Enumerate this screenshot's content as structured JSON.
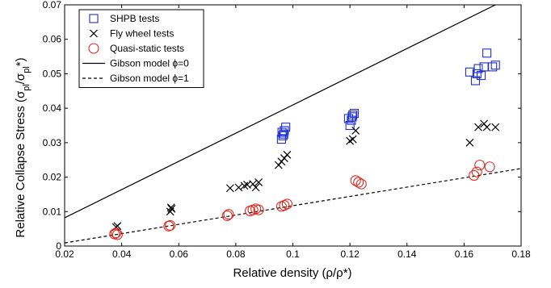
{
  "chart_data": {
    "type": "scatter",
    "xlabel": "Relative density (ρ/ρ*)",
    "ylabel": "Relative Collapse Stress (σ",
    "ylabel_sub1": "pl",
    "ylabel_mid": "/σ",
    "ylabel_sub2": "pl",
    "ylabel_end": "*)",
    "xlim": [
      0.02,
      0.18
    ],
    "ylim": [
      0,
      0.07
    ],
    "xticks": [
      "0.02",
      "0.04",
      "0.06",
      "0.08",
      "0.1",
      "0.12",
      "0.14",
      "0.16",
      "0.18"
    ],
    "yticks": [
      "0",
      "0.01",
      "0.02",
      "0.03",
      "0.04",
      "0.05",
      "0.06",
      "0.07"
    ],
    "legend_position": "top-left",
    "series": [
      {
        "name": "SHPB tests",
        "marker": "square",
        "color": "#1f2fd0",
        "x": [
          0.096,
          0.0965,
          0.097,
          0.0975,
          0.0962,
          0.0968,
          0.12,
          0.1205,
          0.121,
          0.1215,
          0.1195,
          0.1208,
          0.162,
          0.164,
          0.165,
          0.166,
          0.168,
          0.17,
          0.171,
          0.1645,
          0.167
        ],
        "y": [
          0.031,
          0.032,
          0.0335,
          0.0345,
          0.033,
          0.0325,
          0.035,
          0.0365,
          0.038,
          0.0385,
          0.037,
          0.0375,
          0.0505,
          0.048,
          0.0515,
          0.0495,
          0.056,
          0.052,
          0.0525,
          0.05,
          0.052
        ]
      },
      {
        "name": "Fly wheel tests",
        "marker": "cross",
        "color": "#000000",
        "x": [
          0.038,
          0.0385,
          0.057,
          0.0575,
          0.0573,
          0.078,
          0.081,
          0.083,
          0.084,
          0.086,
          0.087,
          0.088,
          0.095,
          0.096,
          0.097,
          0.098,
          0.12,
          0.121,
          0.122,
          0.162,
          0.165,
          0.167,
          0.168,
          0.171
        ],
        "y": [
          0.0055,
          0.0058,
          0.01,
          0.0108,
          0.0112,
          0.0168,
          0.017,
          0.0175,
          0.0178,
          0.018,
          0.017,
          0.0185,
          0.0235,
          0.0245,
          0.0255,
          0.0265,
          0.0305,
          0.031,
          0.0335,
          0.03,
          0.0345,
          0.0355,
          0.0345,
          0.0345
        ]
      },
      {
        "name": "Quasi-static tests",
        "marker": "circle",
        "color": "#e0261c",
        "x": [
          0.0375,
          0.038,
          0.0385,
          0.0565,
          0.057,
          0.077,
          0.0775,
          0.085,
          0.086,
          0.087,
          0.088,
          0.096,
          0.097,
          0.098,
          0.122,
          0.123,
          0.124,
          0.1635,
          0.1645,
          0.1655,
          0.169
        ],
        "y": [
          0.0035,
          0.0038,
          0.0033,
          0.0058,
          0.006,
          0.0088,
          0.0092,
          0.0102,
          0.0105,
          0.0108,
          0.0105,
          0.0115,
          0.0118,
          0.0122,
          0.019,
          0.0185,
          0.018,
          0.0205,
          0.0215,
          0.0235,
          0.023
        ]
      },
      {
        "name": "Gibson model ϕ=0",
        "type": "line",
        "style": "solid",
        "color": "#000000",
        "x": [
          0.02,
          0.171
        ],
        "y": [
          0.0082,
          0.07
        ]
      },
      {
        "name": "Gibson model ϕ=1",
        "type": "line",
        "style": "dashed",
        "color": "#000000",
        "x": [
          0.02,
          0.18
        ],
        "y": [
          0.0009,
          0.0225
        ]
      }
    ]
  }
}
